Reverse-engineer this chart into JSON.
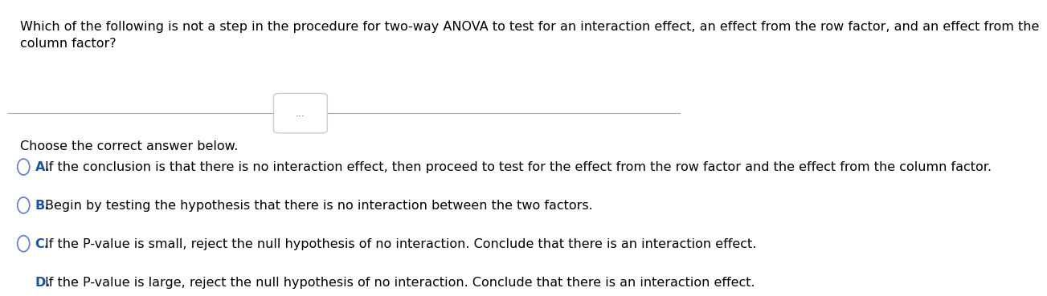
{
  "background_color": "#ffffff",
  "question": "Which of the following is not a step in the procedure for two-way ANOVA to test for an interaction effect, an effect from the row factor, and an effect from the\ncolumn factor?",
  "divider_label": "...",
  "prompt": "Choose the correct answer below.",
  "options": [
    {
      "letter": "A.",
      "text": "If the conclusion is that there is no interaction effect, then proceed to test for the effect from the row factor and the effect from the column factor."
    },
    {
      "letter": "B.",
      "text": "Begin by testing the hypothesis that there is no interaction between the two factors."
    },
    {
      "letter": "C.",
      "text": "If the P-value is small, reject the null hypothesis of no interaction. Conclude that there is an interaction effect."
    },
    {
      "letter": "D.",
      "text": "If the P-value is large, reject the null hypothesis of no interaction. Conclude that there is an interaction effect."
    }
  ],
  "question_fontsize": 11.5,
  "prompt_fontsize": 11.5,
  "option_fontsize": 11.5,
  "letter_color": "#1a52a0",
  "text_color": "#000000",
  "circle_color": "#5a7ec9",
  "divider_color": "#aaaaaa",
  "divider_box_color": "#cccccc",
  "divider_box_text_color": "#666666"
}
